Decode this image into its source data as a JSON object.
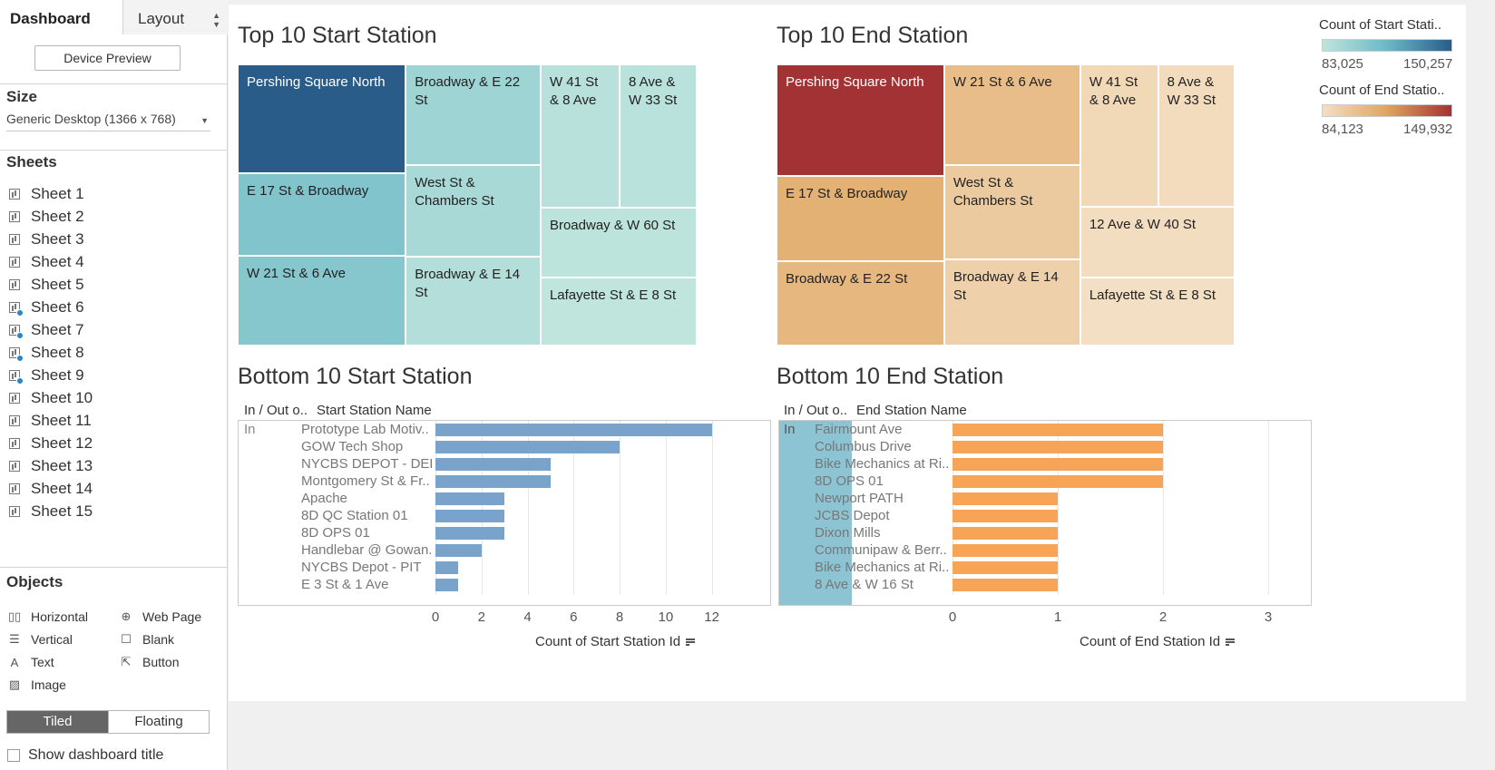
{
  "sidebar": {
    "tabs": {
      "dashboard": "Dashboard",
      "layout": "Layout"
    },
    "device_preview": "Device Preview",
    "size": {
      "heading": "Size",
      "value": "Generic Desktop (1366 x 768)"
    },
    "sheets": {
      "heading": "Sheets",
      "items": [
        {
          "label": "Sheet 1",
          "used": false
        },
        {
          "label": "Sheet 2",
          "used": false
        },
        {
          "label": "Sheet 3",
          "used": false
        },
        {
          "label": "Sheet 4",
          "used": false
        },
        {
          "label": "Sheet 5",
          "used": false
        },
        {
          "label": "Sheet 6",
          "used": true
        },
        {
          "label": "Sheet 7",
          "used": true
        },
        {
          "label": "Sheet 8",
          "used": true
        },
        {
          "label": "Sheet 9",
          "used": true
        },
        {
          "label": "Sheet 10",
          "used": false
        },
        {
          "label": "Sheet 11",
          "used": false
        },
        {
          "label": "Sheet 12",
          "used": false
        },
        {
          "label": "Sheet 13",
          "used": false
        },
        {
          "label": "Sheet 14",
          "used": false
        },
        {
          "label": "Sheet 15",
          "used": false
        }
      ]
    },
    "objects": {
      "heading": "Objects",
      "items": [
        {
          "label": "Horizontal",
          "icon": "horizontal-icon",
          "glyph": "▯▯"
        },
        {
          "label": "Web Page",
          "icon": "globe-icon",
          "glyph": "⊕"
        },
        {
          "label": "Vertical",
          "icon": "vertical-icon",
          "glyph": "☰"
        },
        {
          "label": "Blank",
          "icon": "blank-icon",
          "glyph": "☐"
        },
        {
          "label": "Text",
          "icon": "text-icon",
          "glyph": "A"
        },
        {
          "label": "Button",
          "icon": "button-icon",
          "glyph": "⇱"
        },
        {
          "label": "Image",
          "icon": "image-icon",
          "glyph": "▨"
        }
      ]
    },
    "mode": {
      "tiled": "Tiled",
      "floating": "Floating",
      "active": "Tiled"
    },
    "show_title": "Show dashboard title"
  },
  "dashboard": {
    "top_start": {
      "title": "Top 10 Start Station",
      "color_range": [
        "#bfe5dd",
        "#2a5c8a"
      ]
    },
    "top_end": {
      "title": "Top 10 End Station",
      "color_range": [
        "#f2dcbd",
        "#a33234"
      ]
    },
    "legends": {
      "start": {
        "title": "Count of Start Stati..",
        "min": "83,025",
        "max": "150,257",
        "colors": [
          "#bfe5dd",
          "#6cb8c6",
          "#2a5c8a"
        ]
      },
      "end": {
        "title": "Count of End Statio..",
        "min": "84,123",
        "max": "149,932",
        "colors": [
          "#f3dfc3",
          "#e0a45e",
          "#a33234"
        ]
      }
    },
    "bottom_start": {
      "title": "Bottom 10 Start Station",
      "col1": "In / Out o..",
      "col2": "Start Station Name",
      "group": "In",
      "axis_title": "Count of Start Station Id",
      "bar_color": "#7aa3cc"
    },
    "bottom_end": {
      "title": "Bottom 10 End Station",
      "col1": "In / Out o..",
      "col2": "End Station Name",
      "group": "In",
      "axis_title": "Count of End Station Id",
      "bar_color": "#f7a457",
      "group_color": "#8cc4d3"
    }
  },
  "chart_data": [
    {
      "type": "treemap",
      "title": "Top 10 Start Station",
      "categories": [
        "Pershing Square North",
        "E 17 St & Broadway",
        "W 21 St & 6 Ave",
        "Broadway & E 22 St",
        "West St & Chambers St",
        "Broadway & E 14 St",
        "W 41 St & 8 Ave",
        "8 Ave & W 33 St",
        "Broadway & W 60 St",
        "Lafayette St & E 8 St"
      ],
      "values": [
        150257,
        108000,
        106000,
        96000,
        92000,
        88000,
        86000,
        85000,
        84000,
        83025
      ],
      "color_label": "Count of Start Stati..",
      "color_range": [
        83025,
        150257
      ]
    },
    {
      "type": "treemap",
      "title": "Top 10 End Station",
      "categories": [
        "Pershing Square North",
        "E 17 St & Broadway",
        "Broadway & E 22 St",
        "W 21 St & 6 Ave",
        "West St & Chambers St",
        "Broadway & E 14 St",
        "W 41 St & 8 Ave",
        "8 Ave & W 33 St",
        "12 Ave & W 40 St",
        "Lafayette St & E 8 St"
      ],
      "values": [
        149932,
        110000,
        106000,
        103000,
        96000,
        92000,
        88000,
        86000,
        85000,
        84123
      ],
      "color_label": "Count of End Statio..",
      "color_range": [
        84123,
        149932
      ]
    },
    {
      "type": "bar",
      "title": "Bottom 10 Start Station",
      "orientation": "horizontal",
      "categories": [
        "Prototype Lab Motiv..",
        "GOW Tech Shop",
        "NYCBS DEPOT - DEL..",
        "Montgomery St & Fr..",
        "Apache",
        "8D QC Station 01",
        "8D OPS 01",
        "Handlebar @ Gowan..",
        "NYCBS Depot - PIT",
        "E 3 St & 1 Ave"
      ],
      "values": [
        12,
        8,
        5,
        5,
        3,
        3,
        3,
        2,
        1,
        1
      ],
      "xlabel": "Count of Start Station Id",
      "xlim": [
        0,
        13
      ],
      "xticks": [
        0,
        2,
        4,
        6,
        8,
        10,
        12
      ]
    },
    {
      "type": "bar",
      "title": "Bottom 10 End Station",
      "orientation": "horizontal",
      "categories": [
        "Fairmount Ave",
        "Columbus Drive",
        "Bike Mechanics at Ri..",
        "8D OPS 01",
        "Newport PATH",
        "JCBS Depot",
        "Dixon Mills",
        "Communipaw & Berr..",
        "Bike Mechanics at Ri..",
        "8 Ave & W 16 St"
      ],
      "values": [
        2,
        2,
        2,
        2,
        1,
        1,
        1,
        1,
        1,
        1
      ],
      "xlabel": "Count of End Station Id",
      "xlim": [
        0,
        3
      ],
      "xticks": [
        0,
        1,
        2,
        3
      ]
    }
  ]
}
